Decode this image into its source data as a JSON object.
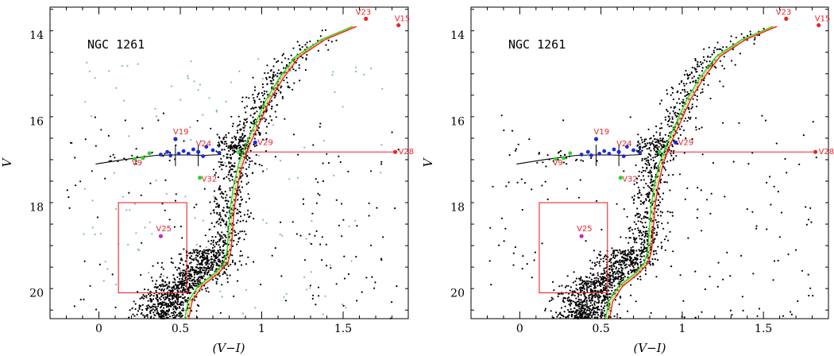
{
  "chart_data": [
    {
      "type": "scatter",
      "panel": "left",
      "cluster_label": "NGC 1261",
      "xlabel": "(V−I)",
      "ylabel": "V",
      "xlim": [
        -0.3,
        1.9
      ],
      "ylim": [
        20.6,
        13.35
      ],
      "x_ticks": [
        0,
        0.5,
        1,
        1.5
      ],
      "x_tick_labels": [
        "0",
        "0.5",
        "1",
        "1.5"
      ],
      "y_ticks": [
        14,
        16,
        18,
        20
      ],
      "y_tick_labels": [
        "14",
        "16",
        "18",
        "20"
      ],
      "show_field_stars": true,
      "variables": [
        {
          "label": "V23",
          "x": 1.64,
          "y": 13.62,
          "color": "#e8262b"
        },
        {
          "label": "V15",
          "x": 1.84,
          "y": 13.77,
          "color": "#e8262b"
        },
        {
          "label": "V19",
          "x": 0.47,
          "y": 16.42,
          "color": "#1c2bd6"
        },
        {
          "label": "V24",
          "x": 0.61,
          "y": 16.72,
          "color": "#1c2bd6"
        },
        {
          "label": "V29",
          "x": 0.96,
          "y": 16.5,
          "color": "#1c2bd6"
        },
        {
          "label": "V28",
          "x": 1.82,
          "y": 16.72,
          "color": "#e8262b"
        },
        {
          "label": "V9",
          "x": 0.27,
          "y": 16.86,
          "color": "#2ed12e"
        },
        {
          "label": "V32",
          "x": 0.62,
          "y": 17.32,
          "color": "#2ed12e"
        },
        {
          "label": "V25",
          "x": 0.38,
          "y": 18.68,
          "color": "#c22bc8"
        }
      ],
      "box": {
        "x": [
          0.12,
          0.54
        ],
        "y": [
          17.9,
          20.0
        ]
      }
    },
    {
      "type": "scatter",
      "panel": "right",
      "cluster_label": "NGC 1261",
      "xlabel": "(V−I)",
      "ylabel": "V",
      "xlim": [
        -0.3,
        1.9
      ],
      "ylim": [
        20.6,
        13.35
      ],
      "x_ticks": [
        0,
        0.5,
        1,
        1.5
      ],
      "x_tick_labels": [
        "0",
        "0.5",
        "1",
        "1.5"
      ],
      "y_ticks": [
        14,
        16,
        18,
        20
      ],
      "y_tick_labels": [
        "14",
        "16",
        "18",
        "20"
      ],
      "show_field_stars": false,
      "variables": [
        {
          "label": "V23",
          "x": 1.64,
          "y": 13.62,
          "color": "#e8262b"
        },
        {
          "label": "V15",
          "x": 1.84,
          "y": 13.77,
          "color": "#e8262b"
        },
        {
          "label": "V19",
          "x": 0.47,
          "y": 16.42,
          "color": "#1c2bd6"
        },
        {
          "label": "V24",
          "x": 0.61,
          "y": 16.72,
          "color": "#1c2bd6"
        },
        {
          "label": "V29",
          "x": 0.96,
          "y": 16.5,
          "color": "#1c2bd6"
        },
        {
          "label": "V28",
          "x": 1.82,
          "y": 16.72,
          "color": "#e8262b"
        },
        {
          "label": "V9",
          "x": 0.27,
          "y": 16.86,
          "color": "#2ed12e"
        },
        {
          "label": "V32",
          "x": 0.62,
          "y": 17.32,
          "color": "#2ed12e"
        },
        {
          "label": "V25",
          "x": 0.38,
          "y": 18.68,
          "color": "#c22bc8"
        }
      ],
      "box": {
        "x": [
          0.12,
          0.54
        ],
        "y": [
          17.9,
          20.0
        ]
      }
    }
  ],
  "colors": {
    "cluster_stars": "#000000",
    "field_stars": "#7fb8b4",
    "isochrone_red": "#e8262b",
    "isochrone_green": "#2ed12e",
    "isochrone_yellow": "#d8c820",
    "hb_track": "#000000",
    "rr_blue": "#1c2bd6",
    "rr_green": "#2ed12e"
  }
}
